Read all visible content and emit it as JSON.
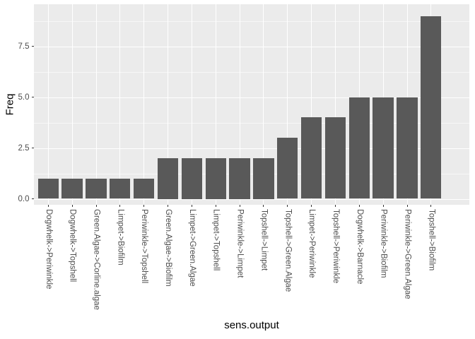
{
  "chart_data": {
    "type": "bar",
    "title": "",
    "xlabel": "sens.output",
    "ylabel": "Freq",
    "categories": [
      "Dogwhelk->Periwinkle",
      "Dogwhelk->Topshell",
      "Green.Algae->Corline.algae",
      "Limpet->Biofilm",
      "Periwinkle->Topshell",
      "Green.Algae->Biofilm",
      "Limpet->Green.Algae",
      "Limpet->Topshell",
      "Periwinkle->Limpet",
      "Topshell->Limpet",
      "Topshell->Green.Algae",
      "Limpet->Periwinkle",
      "Topshell->Periwinkle",
      "Dogwhelk->Barnacle",
      "Periwinkle->Biofilm",
      "Periwinkle->Green.Algae",
      "Topshell->Biofilm"
    ],
    "values": [
      1,
      1,
      1,
      1,
      1,
      2,
      2,
      2,
      2,
      2,
      3,
      4,
      4,
      5,
      5,
      5,
      9
    ],
    "y_ticks": [
      0,
      2.5,
      5,
      7.5
    ],
    "y_tick_labels": [
      "0.0",
      "2.5",
      "5.0",
      "7.5"
    ],
    "y_minor_ticks": [
      1.25,
      3.75,
      6.25,
      8.75
    ],
    "ylim": [
      -0.3,
      9.6
    ],
    "grid": true,
    "legend": "none",
    "colors": {
      "bar_fill": "#595959",
      "panel_background": "#EBEBEB",
      "grid_line": "#FFFFFF",
      "axis_text": "#4D4D4D",
      "axis_title": "#000000",
      "tick_mark": "#333333",
      "figure_background": "#FFFFFF"
    }
  }
}
